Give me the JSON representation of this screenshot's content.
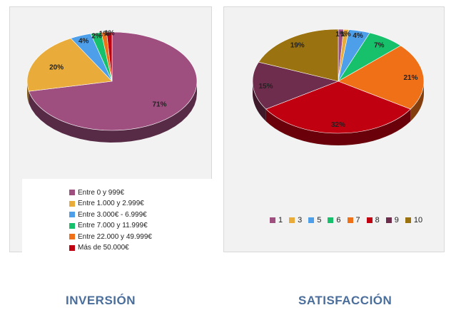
{
  "chart_data": [
    {
      "type": "pie",
      "title": "INVERSIÓN",
      "legend_position": "bottom",
      "slices": [
        {
          "label": "Entre 0 y 999€",
          "value": 71,
          "display": "71%",
          "color": "#9e4f7f"
        },
        {
          "label": "Entre 1.000 y 2.999€",
          "value": 20,
          "display": "20%",
          "color": "#e9ac3a"
        },
        {
          "label": "Entre 3.000€ - 6.999€",
          "value": 4,
          "display": "4%",
          "color": "#4d9fe9"
        },
        {
          "label": "Entre 7.000 y 11.999€",
          "value": 2,
          "display": "2%",
          "color": "#17c06a"
        },
        {
          "label": "Entre 22.000 y 49.999€",
          "value": 1,
          "display": "1%",
          "color": "#f07018"
        },
        {
          "label": "Más de 50.000€",
          "value": 1,
          "display": "1%",
          "color": "#c00010"
        }
      ]
    },
    {
      "type": "pie",
      "title": "SATISFACCIÓN",
      "legend_position": "bottom",
      "slices": [
        {
          "label": "1",
          "value": 1,
          "display": "1%",
          "color": "#9e4f7f"
        },
        {
          "label": "3",
          "value": 1,
          "display": "1%",
          "color": "#e9ac3a"
        },
        {
          "label": "5",
          "value": 4,
          "display": "4%",
          "color": "#4d9fe9"
        },
        {
          "label": "6",
          "value": 7,
          "display": "7%",
          "color": "#17c06a"
        },
        {
          "label": "7",
          "value": 21,
          "display": "21%",
          "color": "#f07018"
        },
        {
          "label": "8",
          "value": 32,
          "display": "32%",
          "color": "#c00010"
        },
        {
          "label": "9",
          "value": 15,
          "display": "15%",
          "color": "#6e2d4c"
        },
        {
          "label": "10",
          "value": 19,
          "display": "19%",
          "color": "#9a7310"
        }
      ]
    }
  ]
}
